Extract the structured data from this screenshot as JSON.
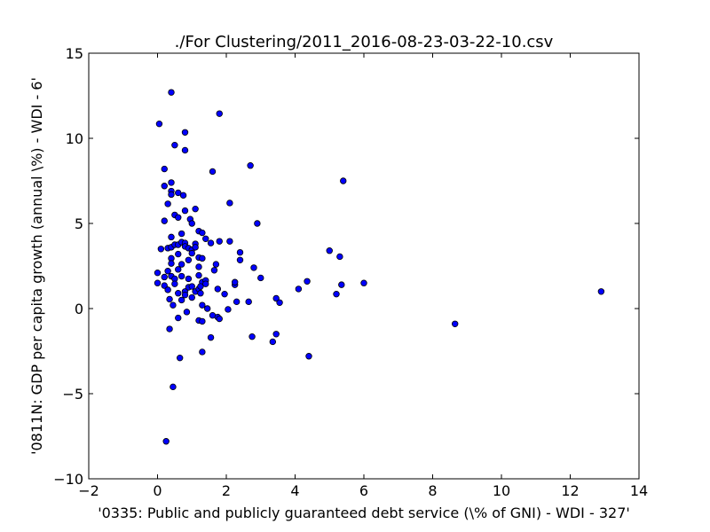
{
  "chart_data": {
    "type": "scatter",
    "title": "./For Clustering/2011_2016-08-23-03-22-10.csv",
    "xlabel": "'0335: Public and publicly guaranteed debt service  (\\% of GNI) - WDI - 327'",
    "ylabel": "'0811N: GDP per capita growth  (annual \\%) - WDI - 6'",
    "xlim": [
      -2,
      14
    ],
    "ylim": [
      -10,
      15
    ],
    "xticks": [
      "−2",
      "0",
      "2",
      "4",
      "6",
      "8",
      "10",
      "12",
      "14"
    ],
    "yticks": [
      "−10",
      "−5",
      "0",
      "5",
      "10",
      "15"
    ],
    "grid": false,
    "marker_color": "#0000ff",
    "marker_edge": "#000000",
    "points": [
      [
        0.05,
        10.85
      ],
      [
        0.4,
        12.7
      ],
      [
        0.8,
        10.35
      ],
      [
        0.8,
        9.3
      ],
      [
        0.5,
        9.6
      ],
      [
        1.8,
        11.45
      ],
      [
        0.2,
        8.2
      ],
      [
        0.2,
        7.2
      ],
      [
        0.4,
        7.4
      ],
      [
        0.4,
        6.9
      ],
      [
        0.4,
        6.7
      ],
      [
        0.6,
        6.8
      ],
      [
        0.75,
        6.65
      ],
      [
        0.3,
        6.15
      ],
      [
        1.6,
        8.05
      ],
      [
        2.7,
        8.4
      ],
      [
        5.4,
        7.5
      ],
      [
        2.1,
        6.2
      ],
      [
        0.2,
        5.15
      ],
      [
        0.5,
        5.5
      ],
      [
        0.6,
        5.35
      ],
      [
        0.8,
        5.75
      ],
      [
        0.95,
        5.25
      ],
      [
        1.0,
        5.0
      ],
      [
        1.1,
        5.85
      ],
      [
        1.2,
        4.55
      ],
      [
        1.3,
        4.45
      ],
      [
        1.4,
        4.1
      ],
      [
        1.55,
        3.85
      ],
      [
        1.8,
        3.95
      ],
      [
        2.1,
        3.95
      ],
      [
        2.9,
        5.0
      ],
      [
        0.1,
        3.5
      ],
      [
        0.3,
        3.55
      ],
      [
        0.4,
        4.2
      ],
      [
        0.4,
        3.6
      ],
      [
        0.5,
        3.75
      ],
      [
        0.6,
        3.75
      ],
      [
        0.7,
        3.9
      ],
      [
        0.7,
        4.4
      ],
      [
        0.8,
        3.85
      ],
      [
        0.8,
        3.65
      ],
      [
        0.9,
        3.55
      ],
      [
        1.0,
        3.45
      ],
      [
        1.0,
        3.25
      ],
      [
        1.1,
        3.8
      ],
      [
        1.1,
        3.6
      ],
      [
        1.2,
        3.0
      ],
      [
        0.6,
        3.2
      ],
      [
        0.4,
        2.95
      ],
      [
        0.4,
        2.65
      ],
      [
        0.7,
        2.6
      ],
      [
        0.9,
        2.85
      ],
      [
        1.2,
        2.45
      ],
      [
        1.3,
        2.95
      ],
      [
        1.7,
        2.6
      ],
      [
        1.65,
        2.25
      ],
      [
        2.4,
        3.3
      ],
      [
        2.4,
        2.85
      ],
      [
        2.8,
        2.4
      ],
      [
        3.0,
        1.8
      ],
      [
        5.0,
        3.4
      ],
      [
        5.3,
        3.05
      ],
      [
        0.0,
        2.1
      ],
      [
        0.2,
        1.85
      ],
      [
        0.3,
        2.2
      ],
      [
        0.4,
        1.9
      ],
      [
        0.5,
        1.75
      ],
      [
        0.6,
        2.3
      ],
      [
        0.7,
        1.9
      ],
      [
        0.9,
        1.75
      ],
      [
        1.2,
        1.95
      ],
      [
        1.3,
        1.55
      ],
      [
        1.4,
        1.65
      ],
      [
        0.0,
        1.5
      ],
      [
        0.2,
        1.35
      ],
      [
        0.3,
        1.1
      ],
      [
        0.5,
        1.45
      ],
      [
        0.6,
        0.9
      ],
      [
        0.8,
        1.0
      ],
      [
        0.9,
        1.25
      ],
      [
        1.0,
        1.3
      ],
      [
        1.1,
        1.0
      ],
      [
        1.2,
        1.15
      ],
      [
        1.25,
        1.3
      ],
      [
        1.4,
        1.45
      ],
      [
        1.75,
        1.15
      ],
      [
        1.95,
        0.85
      ],
      [
        2.25,
        1.4
      ],
      [
        2.25,
        1.55
      ],
      [
        4.1,
        1.15
      ],
      [
        4.35,
        1.6
      ],
      [
        5.2,
        0.85
      ],
      [
        5.35,
        1.4
      ],
      [
        6.0,
        1.5
      ],
      [
        12.9,
        1.0
      ],
      [
        0.35,
        0.55
      ],
      [
        0.45,
        0.2
      ],
      [
        0.7,
        0.5
      ],
      [
        0.8,
        0.8
      ],
      [
        1.0,
        0.65
      ],
      [
        1.25,
        0.9
      ],
      [
        1.3,
        0.2
      ],
      [
        1.45,
        0.0
      ],
      [
        2.3,
        0.4
      ],
      [
        2.65,
        0.4
      ],
      [
        3.45,
        0.6
      ],
      [
        3.55,
        0.35
      ],
      [
        0.6,
        -0.55
      ],
      [
        0.85,
        -0.2
      ],
      [
        1.2,
        -0.7
      ],
      [
        1.3,
        -0.75
      ],
      [
        1.6,
        -0.4
      ],
      [
        1.75,
        -0.5
      ],
      [
        1.8,
        -0.6
      ],
      [
        2.05,
        -0.05
      ],
      [
        8.65,
        -0.9
      ],
      [
        0.35,
        -1.2
      ],
      [
        1.55,
        -1.7
      ],
      [
        2.75,
        -1.65
      ],
      [
        3.35,
        -1.95
      ],
      [
        3.45,
        -1.5
      ],
      [
        1.3,
        -2.55
      ],
      [
        0.65,
        -2.9
      ],
      [
        4.4,
        -2.8
      ],
      [
        0.45,
        -4.6
      ],
      [
        0.25,
        -7.8
      ]
    ]
  }
}
